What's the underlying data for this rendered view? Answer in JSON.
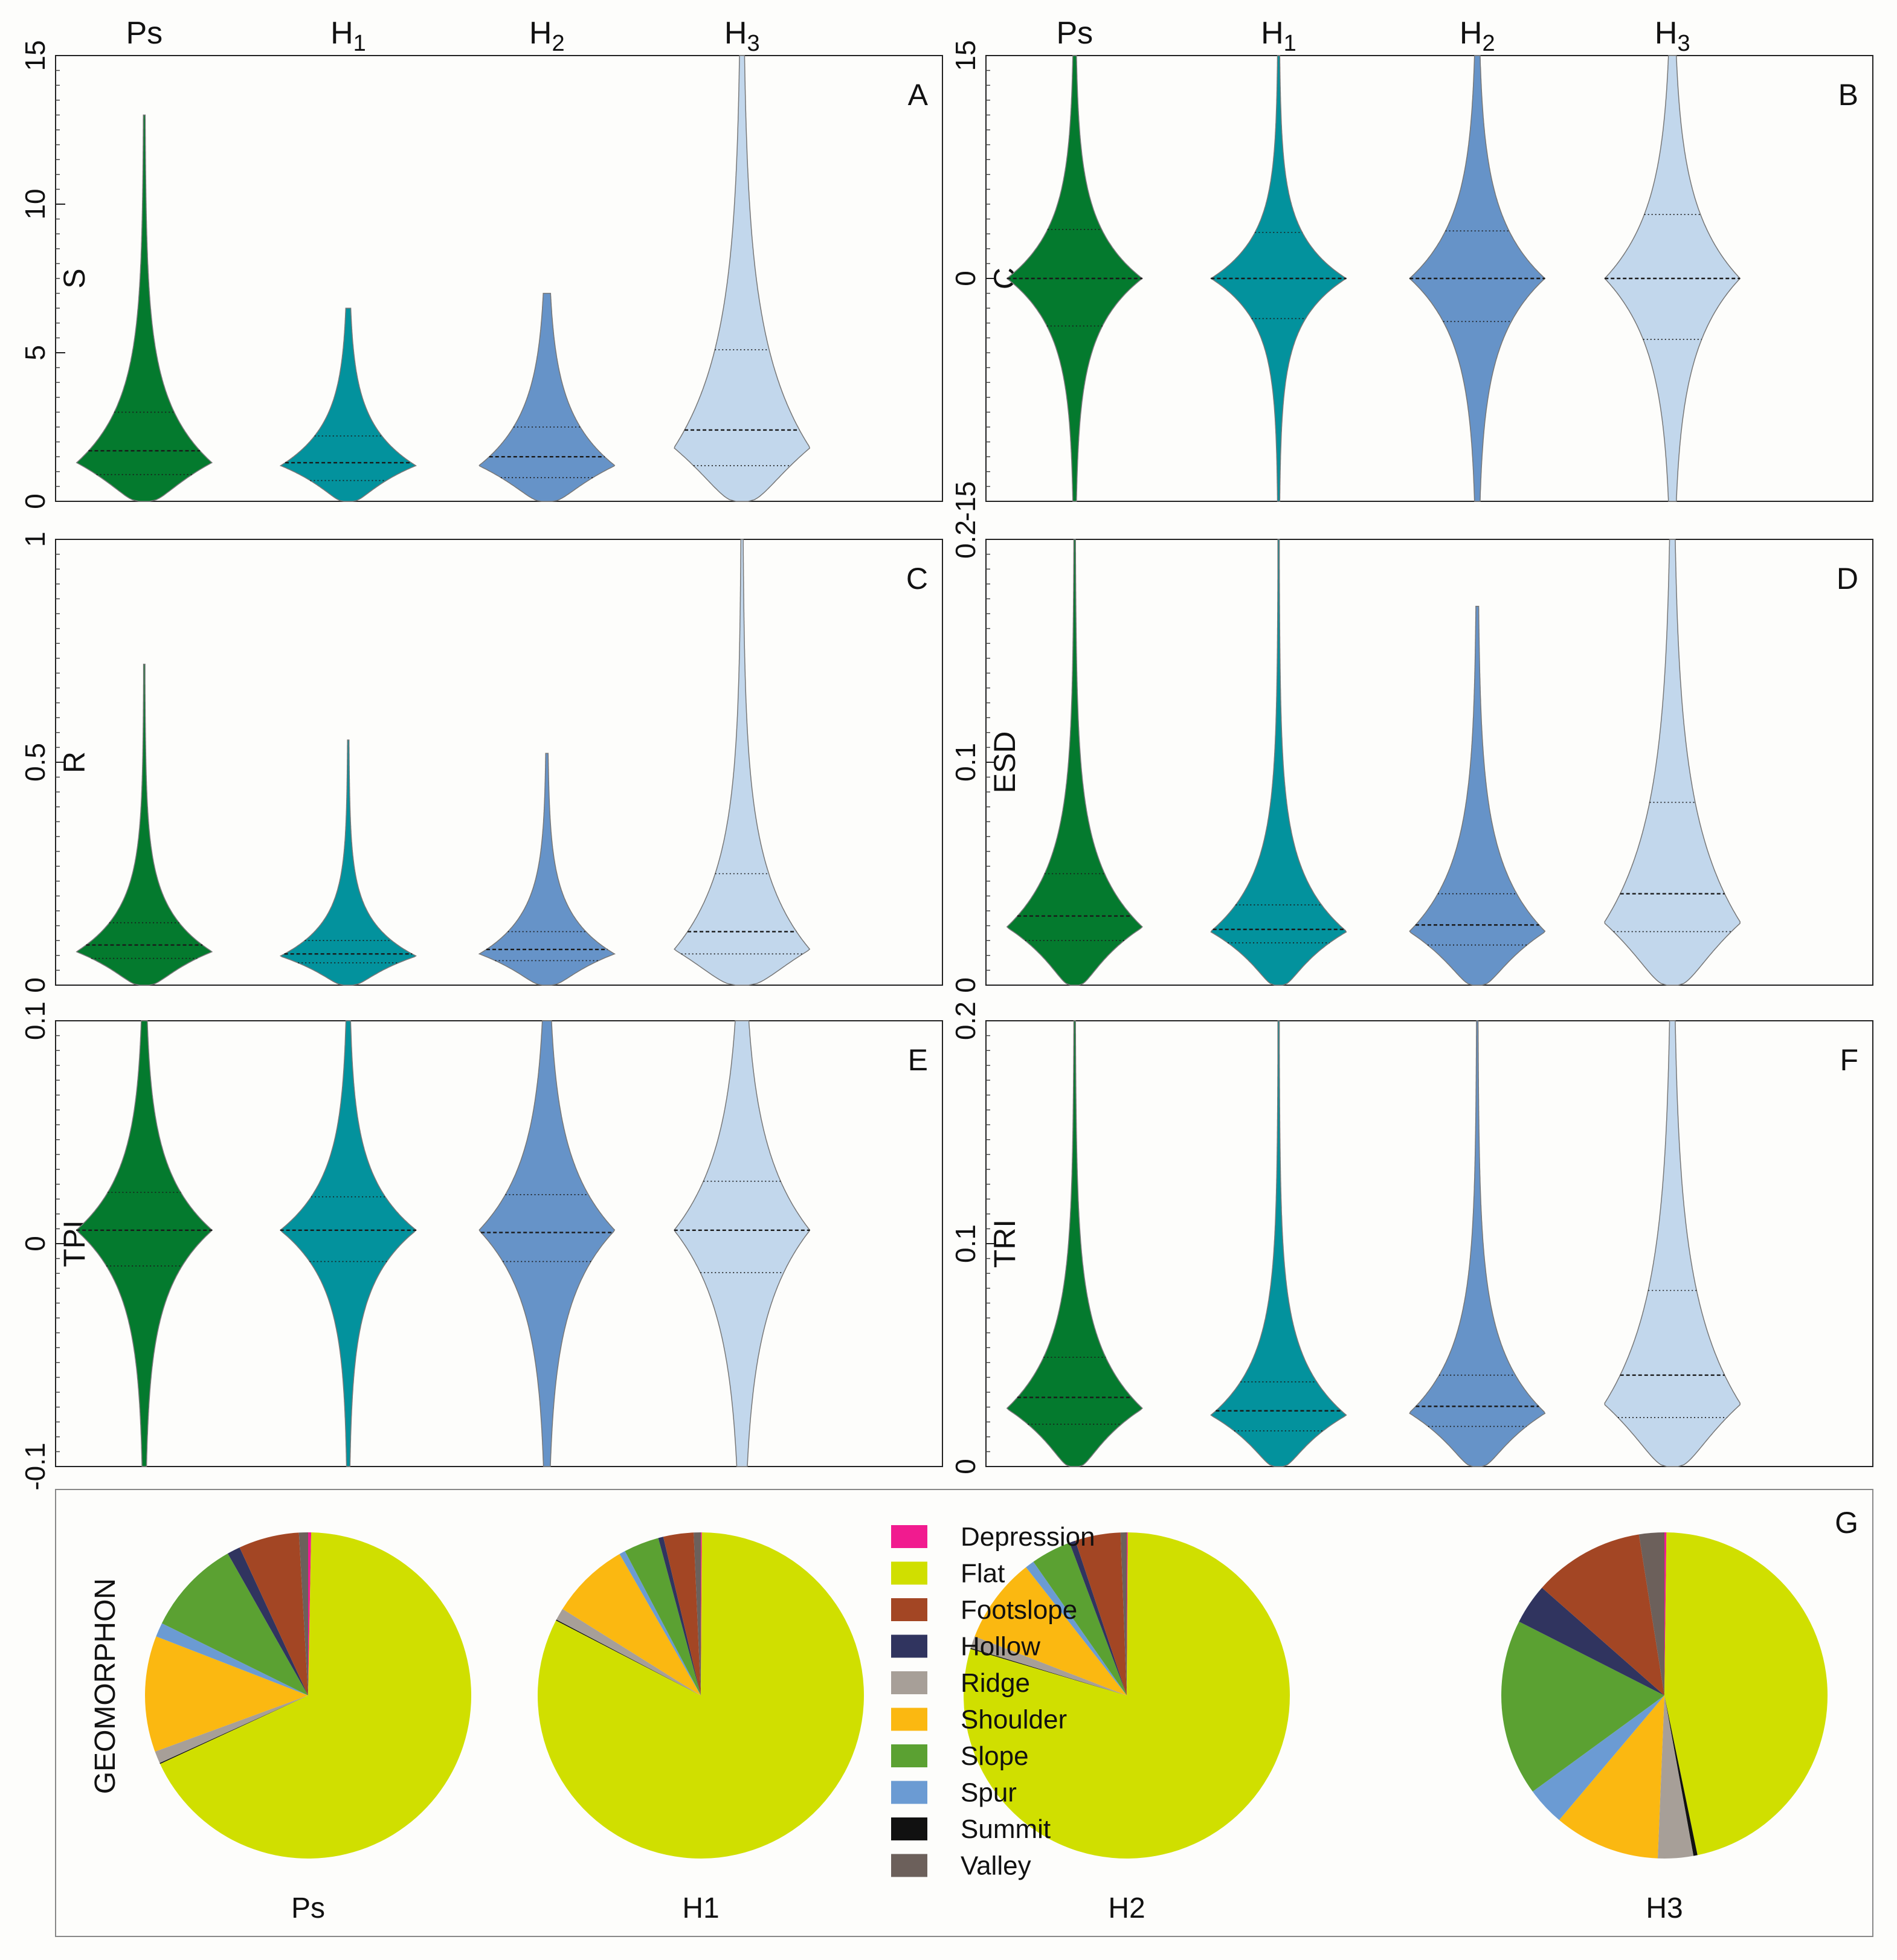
{
  "colors": {
    "Ps": "#047a2e",
    "H1": "#03929d",
    "H2": "#6693c8",
    "H3": "#c2d7ec",
    "Depression": "#f11b8f",
    "Flat": "#d0df00",
    "Footslope": "#a34624",
    "Hollow": "#30345f",
    "Ridge": "#a79f98",
    "Shoulder": "#fbb811",
    "Slope": "#5ba132",
    "Spur": "#6b9bd3",
    "Summit": "#111111",
    "Valley": "#6c605b"
  },
  "column_headers": {
    "left": [
      {
        "base": "Ps",
        "sub": ""
      },
      {
        "base": "H",
        "sub": "1"
      },
      {
        "base": "H",
        "sub": "2"
      },
      {
        "base": "H",
        "sub": "3"
      }
    ],
    "right": [
      {
        "base": "Ps",
        "sub": ""
      },
      {
        "base": "H",
        "sub": "1"
      },
      {
        "base": "H",
        "sub": "2"
      },
      {
        "base": "H",
        "sub": "3"
      }
    ]
  },
  "chart_data": [
    {
      "type": "violin",
      "panel": "A",
      "ylabel": "S",
      "ylim": [
        0,
        15
      ],
      "ticks": [
        "0",
        "5",
        "10",
        "15"
      ],
      "tick_values": [
        0,
        5,
        10,
        15
      ],
      "categories": [
        "Ps",
        "H1",
        "H2",
        "H3"
      ],
      "series": [
        {
          "name": "Ps",
          "max": 13,
          "q1": 0.9,
          "median": 1.7,
          "q3": 3.0,
          "mode": 1.3,
          "spread": 3.2
        },
        {
          "name": "H1",
          "max": 6.5,
          "q1": 0.7,
          "median": 1.3,
          "q3": 2.2,
          "mode": 1.2,
          "spread": 2.2
        },
        {
          "name": "H2",
          "max": 7.0,
          "q1": 0.8,
          "median": 1.5,
          "q3": 2.5,
          "mode": 1.2,
          "spread": 2.8
        },
        {
          "name": "H3",
          "max": 15,
          "q1": 1.2,
          "median": 2.4,
          "q3": 5.1,
          "mode": 1.8,
          "spread": 5.5
        }
      ]
    },
    {
      "type": "violin",
      "panel": "B",
      "ylabel": "C",
      "ylim": [
        -15,
        15
      ],
      "ticks": [
        "-15",
        "0",
        "15"
      ],
      "tick_values": [
        -15,
        0,
        15
      ],
      "categories": [
        "Ps",
        "H1",
        "H2",
        "H3"
      ],
      "series": [
        {
          "name": "Ps",
          "min": -15,
          "max": 15,
          "q1": -3.2,
          "median": 0,
          "q3": 3.3,
          "mode": 0,
          "spread": 5.5
        },
        {
          "name": "H1",
          "min": -15,
          "max": 15,
          "q1": -2.7,
          "median": 0,
          "q3": 3.1,
          "mode": 0,
          "spread": 4.5
        },
        {
          "name": "H2",
          "min": -15,
          "max": 15,
          "q1": -2.9,
          "median": 0,
          "q3": 3.2,
          "mode": 0,
          "spread": 6.5
        },
        {
          "name": "H3",
          "min": -15,
          "max": 15,
          "q1": -4.1,
          "median": 0,
          "q3": 4.3,
          "mode": 0,
          "spread": 7.5
        }
      ]
    },
    {
      "type": "violin",
      "panel": "C",
      "ylabel": "R",
      "ylim": [
        0,
        1
      ],
      "ticks": [
        "0",
        "0.5",
        "1"
      ],
      "tick_values": [
        0,
        0.5,
        1
      ],
      "categories": [
        "Ps",
        "H1",
        "H2",
        "H3"
      ],
      "series": [
        {
          "name": "Ps",
          "max": 0.72,
          "q1": 0.06,
          "median": 0.09,
          "q3": 0.14,
          "mode": 0.075,
          "spread": 0.15
        },
        {
          "name": "H1",
          "max": 0.55,
          "q1": 0.05,
          "median": 0.07,
          "q3": 0.1,
          "mode": 0.065,
          "spread": 0.12
        },
        {
          "name": "H2",
          "max": 0.52,
          "q1": 0.055,
          "median": 0.08,
          "q3": 0.12,
          "mode": 0.07,
          "spread": 0.14
        },
        {
          "name": "H3",
          "max": 1.0,
          "q1": 0.07,
          "median": 0.12,
          "q3": 0.25,
          "mode": 0.08,
          "spread": 0.28
        }
      ]
    },
    {
      "type": "violin",
      "panel": "D",
      "ylabel": "ESD",
      "ylim": [
        0,
        0.2
      ],
      "ticks": [
        "0",
        "0.1",
        "0.2"
      ],
      "tick_values": [
        0,
        0.1,
        0.2
      ],
      "categories": [
        "Ps",
        "H1",
        "H2",
        "H3"
      ],
      "series": [
        {
          "name": "Ps",
          "max": 0.2,
          "q1": 0.02,
          "median": 0.031,
          "q3": 0.05,
          "mode": 0.026,
          "spread": 0.045
        },
        {
          "name": "H1",
          "max": 0.2,
          "q1": 0.019,
          "median": 0.025,
          "q3": 0.036,
          "mode": 0.024,
          "spread": 0.04
        },
        {
          "name": "H2",
          "max": 0.17,
          "q1": 0.018,
          "median": 0.027,
          "q3": 0.041,
          "mode": 0.024,
          "spread": 0.048
        },
        {
          "name": "H3",
          "max": 0.2,
          "q1": 0.024,
          "median": 0.041,
          "q3": 0.082,
          "mode": 0.028,
          "spread": 0.075
        }
      ]
    },
    {
      "type": "violin",
      "panel": "E",
      "ylabel": "TPI",
      "ylim": [
        -0.1,
        0.1
      ],
      "ticks": [
        "-0.1",
        "0",
        "0.1"
      ],
      "tick_values": [
        -0.1,
        0,
        0.1
      ],
      "categories": [
        "Ps",
        "H1",
        "H2",
        "H3"
      ],
      "series": [
        {
          "name": "Ps",
          "min": -0.1,
          "max": 0.1,
          "q1": -0.01,
          "median": 0.006,
          "q3": 0.023,
          "mode": 0.006,
          "spread": 0.042
        },
        {
          "name": "H1",
          "min": -0.1,
          "max": 0.1,
          "q1": -0.008,
          "median": 0.006,
          "q3": 0.021,
          "mode": 0.006,
          "spread": 0.038
        },
        {
          "name": "H2",
          "min": -0.1,
          "max": 0.1,
          "q1": -0.008,
          "median": 0.005,
          "q3": 0.022,
          "mode": 0.006,
          "spread": 0.05
        },
        {
          "name": "H3",
          "min": -0.1,
          "max": 0.1,
          "q1": -0.013,
          "median": 0.006,
          "q3": 0.028,
          "mode": 0.006,
          "spread": 0.06
        }
      ]
    },
    {
      "type": "violin",
      "panel": "F",
      "ylabel": "TRI",
      "ylim": [
        0,
        0.2
      ],
      "ticks": [
        "0",
        "0.1",
        "0.2"
      ],
      "tick_values": [
        0,
        0.1,
        0.2
      ],
      "categories": [
        "Ps",
        "H1",
        "H2",
        "H3"
      ],
      "series": [
        {
          "name": "Ps",
          "max": 0.2,
          "q1": 0.019,
          "median": 0.031,
          "q3": 0.049,
          "mode": 0.026,
          "spread": 0.045
        },
        {
          "name": "H1",
          "max": 0.2,
          "q1": 0.016,
          "median": 0.025,
          "q3": 0.038,
          "mode": 0.023,
          "spread": 0.04
        },
        {
          "name": "H2",
          "max": 0.2,
          "q1": 0.018,
          "median": 0.027,
          "q3": 0.041,
          "mode": 0.024,
          "spread": 0.045
        },
        {
          "name": "H3",
          "max": 0.2,
          "q1": 0.022,
          "median": 0.041,
          "q3": 0.079,
          "mode": 0.028,
          "spread": 0.075
        }
      ]
    },
    {
      "type": "pie",
      "panel": "G",
      "ylabel": "GEOMORPHON",
      "legend": [
        "Depression",
        "Flat",
        "Footslope",
        "Hollow",
        "Ridge",
        "Shoulder",
        "Slope",
        "Spur",
        "Summit",
        "Valley"
      ],
      "charts": [
        {
          "label": "Ps",
          "slices": {
            "Depression": 0.3,
            "Flat": 67.8,
            "Ridge": 1.2,
            "Shoulder": 11.5,
            "Spur": 1.4,
            "Slope": 9.5,
            "Hollow": 1.3,
            "Footslope": 6.0,
            "Summit": 0.1,
            "Valley": 0.9
          }
        },
        {
          "label": "H1",
          "slices": {
            "Depression": 0.1,
            "Flat": 82.5,
            "Ridge": 1.2,
            "Shoulder": 7.8,
            "Spur": 0.6,
            "Slope": 3.5,
            "Hollow": 0.5,
            "Footslope": 3.0,
            "Summit": 0.1,
            "Valley": 0.7
          }
        },
        {
          "label": "H2",
          "slices": {
            "Depression": 0.1,
            "Flat": 79.5,
            "Ridge": 1.2,
            "Shoulder": 8.5,
            "Spur": 0.9,
            "Slope": 4.0,
            "Hollow": 0.6,
            "Footslope": 4.5,
            "Summit": 0.1,
            "Valley": 0.6
          }
        },
        {
          "label": "H3",
          "slices": {
            "Depression": 0.2,
            "Flat": 46.5,
            "Summit": 0.4,
            "Ridge": 3.5,
            "Shoulder": 10.5,
            "Spur": 3.8,
            "Slope": 17.5,
            "Hollow": 4.0,
            "Footslope": 11.0,
            "Valley": 2.5
          }
        }
      ]
    }
  ]
}
